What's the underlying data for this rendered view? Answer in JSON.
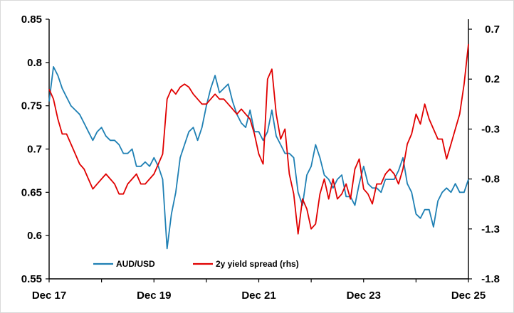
{
  "chart_data": {
    "type": "line",
    "title": "",
    "xlabel": "",
    "ylabel": "",
    "ylabel_right": "",
    "x_tick_labels": [
      "Dec 17",
      "Dec 19",
      "Dec 21",
      "Dec 23",
      "Dec 25"
    ],
    "x_range": [
      "2017-12",
      "2025-12"
    ],
    "left_axis": {
      "ylim": [
        0.55,
        0.85
      ],
      "tick_values": [
        0.55,
        0.6,
        0.65,
        0.7,
        0.75,
        0.8,
        0.85
      ],
      "tick_labels": [
        "0.55",
        "0.6",
        "0.65",
        "0.7",
        "0.75",
        "0.8",
        "0.85"
      ]
    },
    "right_axis": {
      "ylim": [
        -1.8,
        0.8
      ],
      "tick_values": [
        -1.8,
        -1.3,
        -0.8,
        -0.3,
        0.2,
        0.7
      ],
      "tick_labels": [
        "-1.8",
        "-1.3",
        "-0.8",
        "-0.3",
        "0.2",
        "0.7"
      ]
    },
    "grid": false,
    "legend": {
      "placement": "bottom-center"
    },
    "series": [
      {
        "name": "AUD/USD",
        "axis": "left",
        "color": "#1f80b4",
        "points": [
          [
            "2017-12",
            0.755
          ],
          [
            "2018-01",
            0.795
          ],
          [
            "2018-02",
            0.785
          ],
          [
            "2018-03",
            0.77
          ],
          [
            "2018-04",
            0.76
          ],
          [
            "2018-05",
            0.75
          ],
          [
            "2018-06",
            0.745
          ],
          [
            "2018-07",
            0.74
          ],
          [
            "2018-08",
            0.73
          ],
          [
            "2018-09",
            0.72
          ],
          [
            "2018-10",
            0.71
          ],
          [
            "2018-11",
            0.72
          ],
          [
            "2018-12",
            0.725
          ],
          [
            "2019-01",
            0.715
          ],
          [
            "2019-02",
            0.71
          ],
          [
            "2019-03",
            0.71
          ],
          [
            "2019-04",
            0.705
          ],
          [
            "2019-05",
            0.695
          ],
          [
            "2019-06",
            0.695
          ],
          [
            "2019-07",
            0.7
          ],
          [
            "2019-08",
            0.68
          ],
          [
            "2019-09",
            0.68
          ],
          [
            "2019-10",
            0.685
          ],
          [
            "2019-11",
            0.68
          ],
          [
            "2019-12",
            0.69
          ],
          [
            "2020-01",
            0.68
          ],
          [
            "2020-02",
            0.665
          ],
          [
            "2020-03",
            0.585
          ],
          [
            "2020-04",
            0.625
          ],
          [
            "2020-05",
            0.65
          ],
          [
            "2020-06",
            0.69
          ],
          [
            "2020-07",
            0.705
          ],
          [
            "2020-08",
            0.72
          ],
          [
            "2020-09",
            0.725
          ],
          [
            "2020-10",
            0.71
          ],
          [
            "2020-11",
            0.725
          ],
          [
            "2020-12",
            0.75
          ],
          [
            "2021-01",
            0.77
          ],
          [
            "2021-02",
            0.785
          ],
          [
            "2021-03",
            0.765
          ],
          [
            "2021-04",
            0.77
          ],
          [
            "2021-05",
            0.775
          ],
          [
            "2021-06",
            0.755
          ],
          [
            "2021-07",
            0.74
          ],
          [
            "2021-08",
            0.73
          ],
          [
            "2021-09",
            0.725
          ],
          [
            "2021-10",
            0.745
          ],
          [
            "2021-11",
            0.72
          ],
          [
            "2021-12",
            0.72
          ],
          [
            "2022-01",
            0.71
          ],
          [
            "2022-02",
            0.72
          ],
          [
            "2022-03",
            0.745
          ],
          [
            "2022-04",
            0.715
          ],
          [
            "2022-05",
            0.705
          ],
          [
            "2022-06",
            0.695
          ],
          [
            "2022-07",
            0.695
          ],
          [
            "2022-08",
            0.69
          ],
          [
            "2022-09",
            0.65
          ],
          [
            "2022-10",
            0.635
          ],
          [
            "2022-11",
            0.67
          ],
          [
            "2022-12",
            0.68
          ],
          [
            "2023-01",
            0.705
          ],
          [
            "2023-02",
            0.69
          ],
          [
            "2023-03",
            0.67
          ],
          [
            "2023-04",
            0.665
          ],
          [
            "2023-05",
            0.655
          ],
          [
            "2023-06",
            0.665
          ],
          [
            "2023-07",
            0.67
          ],
          [
            "2023-08",
            0.645
          ],
          [
            "2023-09",
            0.645
          ],
          [
            "2023-10",
            0.635
          ],
          [
            "2023-11",
            0.66
          ],
          [
            "2023-12",
            0.68
          ],
          [
            "2024-01",
            0.66
          ],
          [
            "2024-02",
            0.655
          ],
          [
            "2024-03",
            0.655
          ],
          [
            "2024-04",
            0.65
          ],
          [
            "2024-05",
            0.665
          ],
          [
            "2024-06",
            0.665
          ],
          [
            "2024-07",
            0.665
          ],
          [
            "2024-08",
            0.675
          ],
          [
            "2024-09",
            0.69
          ],
          [
            "2024-10",
            0.66
          ],
          [
            "2024-11",
            0.65
          ],
          [
            "2024-12",
            0.625
          ],
          [
            "2025-01",
            0.62
          ],
          [
            "2025-02",
            0.63
          ],
          [
            "2025-03",
            0.63
          ],
          [
            "2025-04",
            0.61
          ],
          [
            "2025-05",
            0.64
          ],
          [
            "2025-06",
            0.65
          ],
          [
            "2025-07",
            0.655
          ],
          [
            "2025-08",
            0.65
          ],
          [
            "2025-09",
            0.66
          ],
          [
            "2025-10",
            0.65
          ],
          [
            "2025-11",
            0.65
          ],
          [
            "2025-12",
            0.665
          ]
        ]
      },
      {
        "name": "2y yield spread (rhs)",
        "axis": "right",
        "color": "#e00000",
        "points": [
          [
            "2017-12",
            0.1
          ],
          [
            "2018-01",
            0.0
          ],
          [
            "2018-02",
            -0.2
          ],
          [
            "2018-03",
            -0.35
          ],
          [
            "2018-04",
            -0.35
          ],
          [
            "2018-05",
            -0.45
          ],
          [
            "2018-06",
            -0.55
          ],
          [
            "2018-07",
            -0.65
          ],
          [
            "2018-08",
            -0.7
          ],
          [
            "2018-09",
            -0.8
          ],
          [
            "2018-10",
            -0.9
          ],
          [
            "2018-11",
            -0.85
          ],
          [
            "2018-12",
            -0.8
          ],
          [
            "2019-01",
            -0.75
          ],
          [
            "2019-02",
            -0.8
          ],
          [
            "2019-03",
            -0.85
          ],
          [
            "2019-04",
            -0.95
          ],
          [
            "2019-05",
            -0.95
          ],
          [
            "2019-06",
            -0.85
          ],
          [
            "2019-07",
            -0.8
          ],
          [
            "2019-08",
            -0.75
          ],
          [
            "2019-09",
            -0.85
          ],
          [
            "2019-10",
            -0.85
          ],
          [
            "2019-11",
            -0.8
          ],
          [
            "2019-12",
            -0.75
          ],
          [
            "2020-01",
            -0.65
          ],
          [
            "2020-02",
            -0.55
          ],
          [
            "2020-03",
            0.0
          ],
          [
            "2020-04",
            0.1
          ],
          [
            "2020-05",
            0.05
          ],
          [
            "2020-06",
            0.12
          ],
          [
            "2020-07",
            0.15
          ],
          [
            "2020-08",
            0.12
          ],
          [
            "2020-09",
            0.05
          ],
          [
            "2020-10",
            0.0
          ],
          [
            "2020-11",
            -0.05
          ],
          [
            "2020-12",
            -0.05
          ],
          [
            "2021-01",
            0.0
          ],
          [
            "2021-02",
            0.05
          ],
          [
            "2021-03",
            0.0
          ],
          [
            "2021-04",
            0.0
          ],
          [
            "2021-05",
            -0.05
          ],
          [
            "2021-06",
            -0.1
          ],
          [
            "2021-07",
            -0.15
          ],
          [
            "2021-08",
            -0.1
          ],
          [
            "2021-09",
            -0.15
          ],
          [
            "2021-10",
            -0.2
          ],
          [
            "2021-11",
            -0.35
          ],
          [
            "2021-12",
            -0.55
          ],
          [
            "2022-01",
            -0.65
          ],
          [
            "2022-02",
            0.2
          ],
          [
            "2022-03",
            0.3
          ],
          [
            "2022-04",
            -0.15
          ],
          [
            "2022-05",
            -0.4
          ],
          [
            "2022-06",
            -0.3
          ],
          [
            "2022-07",
            -0.75
          ],
          [
            "2022-08",
            -0.95
          ],
          [
            "2022-09",
            -1.35
          ],
          [
            "2022-10",
            -1.0
          ],
          [
            "2022-11",
            -1.1
          ],
          [
            "2022-12",
            -1.3
          ],
          [
            "2023-01",
            -1.25
          ],
          [
            "2023-02",
            -0.95
          ],
          [
            "2023-03",
            -0.8
          ],
          [
            "2023-04",
            -1.0
          ],
          [
            "2023-05",
            -0.8
          ],
          [
            "2023-06",
            -1.0
          ],
          [
            "2023-07",
            -0.95
          ],
          [
            "2023-08",
            -0.85
          ],
          [
            "2023-09",
            -1.0
          ],
          [
            "2023-10",
            -0.7
          ],
          [
            "2023-11",
            -0.6
          ],
          [
            "2023-12",
            -0.9
          ],
          [
            "2024-01",
            -0.95
          ],
          [
            "2024-02",
            -1.05
          ],
          [
            "2024-03",
            -0.85
          ],
          [
            "2024-04",
            -0.85
          ],
          [
            "2024-05",
            -0.75
          ],
          [
            "2024-06",
            -0.7
          ],
          [
            "2024-07",
            -0.75
          ],
          [
            "2024-08",
            -0.85
          ],
          [
            "2024-09",
            -0.7
          ],
          [
            "2024-10",
            -0.45
          ],
          [
            "2024-11",
            -0.35
          ],
          [
            "2024-12",
            -0.15
          ],
          [
            "2025-01",
            -0.25
          ],
          [
            "2025-02",
            -0.05
          ],
          [
            "2025-03",
            -0.2
          ],
          [
            "2025-04",
            -0.3
          ],
          [
            "2025-05",
            -0.4
          ],
          [
            "2025-06",
            -0.4
          ],
          [
            "2025-07",
            -0.6
          ],
          [
            "2025-08",
            -0.45
          ],
          [
            "2025-09",
            -0.3
          ],
          [
            "2025-10",
            -0.15
          ],
          [
            "2025-11",
            0.15
          ],
          [
            "2025-12",
            0.55
          ]
        ]
      }
    ]
  }
}
